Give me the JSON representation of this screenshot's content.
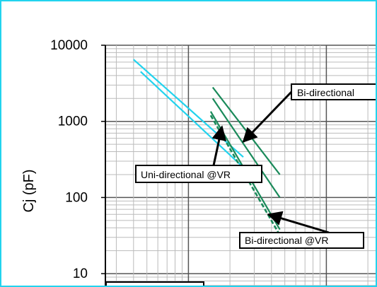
{
  "chart_data": {
    "type": "line",
    "title": "",
    "xlabel": "",
    "ylabel": "Cj (pF)",
    "yscale": "log",
    "xscale": "log",
    "ylim": [
      10,
      10000
    ],
    "yticks": [
      {
        "value": 10000,
        "label": "10000"
      },
      {
        "value": 1000,
        "label": "1000"
      },
      {
        "value": 100,
        "label": "100"
      },
      {
        "value": 10,
        "label": "10"
      }
    ],
    "grid": true,
    "colors": {
      "cyan": "#22d3ee",
      "green": "#1a8a5a",
      "frame": "#22d3ee"
    },
    "series": [
      {
        "color": "#22d3ee",
        "style": "solid",
        "x": [
          0.4,
          2.5
        ],
        "y": [
          6500,
          340
        ]
      },
      {
        "color": "#22d3ee",
        "style": "solid",
        "x": [
          0.45,
          2.55
        ],
        "y": [
          4500,
          240
        ]
      },
      {
        "color": "#1a8a5a",
        "style": "solid",
        "x": [
          1.5,
          4.6
        ],
        "y": [
          2800,
          200
        ]
      },
      {
        "color": "#1a8a5a",
        "style": "solid",
        "x": [
          1.5,
          4.6
        ],
        "y": [
          2000,
          100
        ]
      },
      {
        "color": "#1a8a5a",
        "style": "solid",
        "x": [
          1.45,
          4.6
        ],
        "y": [
          1350,
          38
        ]
      },
      {
        "color": "#1a8a5a",
        "style": "dashed",
        "x": [
          1.45,
          4.6
        ],
        "y": [
          1200,
          32
        ]
      }
    ],
    "annotations": [
      {
        "text": "Bi-directional",
        "target": [
          2.5,
          540
        ]
      },
      {
        "text": "Uni-directional @VR",
        "target": [
          1.75,
          850
        ]
      },
      {
        "text": "Bi-directional @VR",
        "target": [
          3.8,
          60
        ]
      }
    ]
  }
}
